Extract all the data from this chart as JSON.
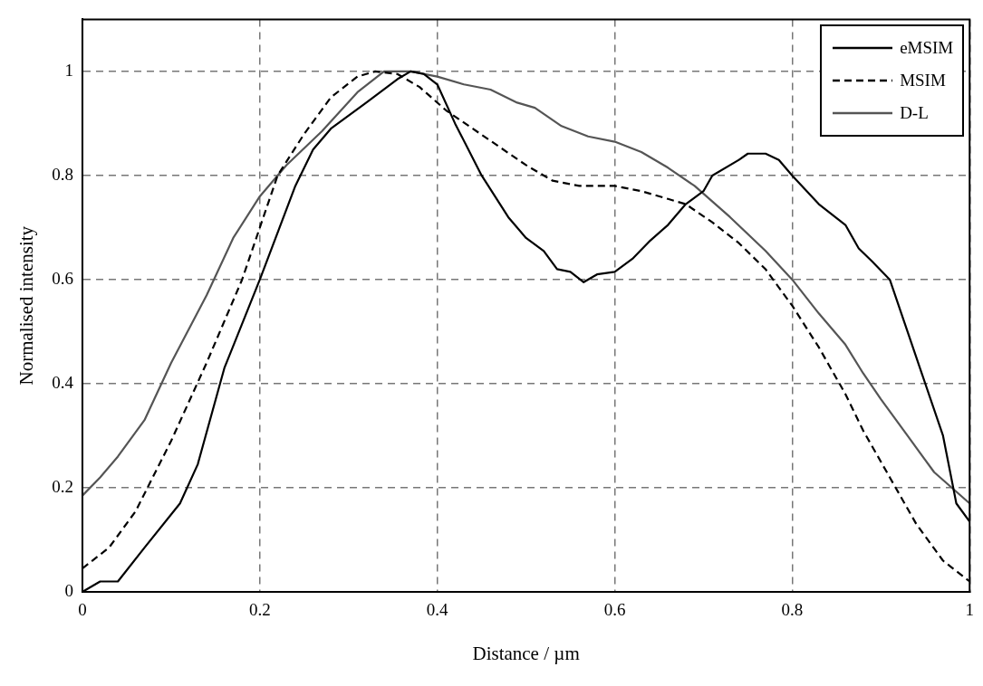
{
  "chart_data": {
    "type": "line",
    "xlabel": "Distance / µm",
    "ylabel": "Normalised intensity",
    "xlim": [
      0,
      1
    ],
    "xticks": [
      0,
      0.2,
      0.4,
      0.6,
      0.8,
      1
    ],
    "ylim": [
      0,
      1.1
    ],
    "yticks": [
      0,
      0.2,
      0.4,
      0.6,
      0.8,
      1
    ],
    "grid": true,
    "legend": "top right",
    "marker": "none",
    "series": [
      {
        "name": "eMSIM",
        "color": "#000000",
        "line_style": "solid",
        "x": [
          0,
          0.02,
          0.04,
          0.07,
          0.11,
          0.13,
          0.16,
          0.2,
          0.24,
          0.26,
          0.28,
          0.32,
          0.355,
          0.37,
          0.385,
          0.4,
          0.42,
          0.45,
          0.48,
          0.5,
          0.52,
          0.535,
          0.55,
          0.565,
          0.58,
          0.6,
          0.62,
          0.64,
          0.66,
          0.68,
          0.7,
          0.71,
          0.74,
          0.75,
          0.77,
          0.785,
          0.8,
          0.83,
          0.86,
          0.875,
          0.89,
          0.91,
          0.94,
          0.97,
          0.985,
          1
        ],
        "values": [
          0,
          0.02,
          0.02,
          0.085,
          0.17,
          0.245,
          0.43,
          0.6,
          0.78,
          0.85,
          0.89,
          0.94,
          0.985,
          1,
          0.995,
          0.975,
          0.9,
          0.8,
          0.72,
          0.68,
          0.655,
          0.62,
          0.615,
          0.595,
          0.61,
          0.615,
          0.64,
          0.675,
          0.705,
          0.745,
          0.77,
          0.8,
          0.83,
          0.842,
          0.842,
          0.83,
          0.8,
          0.745,
          0.705,
          0.66,
          0.635,
          0.6,
          0.45,
          0.3,
          0.17,
          0.135
        ]
      },
      {
        "name": "MSIM",
        "color": "#000000",
        "line_style": "dashed",
        "x": [
          0,
          0.03,
          0.06,
          0.1,
          0.14,
          0.18,
          0.2,
          0.22,
          0.25,
          0.28,
          0.31,
          0.33,
          0.355,
          0.38,
          0.41,
          0.44,
          0.47,
          0.5,
          0.53,
          0.56,
          0.6,
          0.63,
          0.66,
          0.68,
          0.71,
          0.74,
          0.77,
          0.8,
          0.83,
          0.86,
          0.88,
          0.91,
          0.94,
          0.97,
          1
        ],
        "values": [
          0.045,
          0.085,
          0.155,
          0.29,
          0.44,
          0.6,
          0.7,
          0.8,
          0.88,
          0.95,
          0.99,
          1,
          0.995,
          0.97,
          0.925,
          0.89,
          0.855,
          0.82,
          0.79,
          0.78,
          0.78,
          0.77,
          0.755,
          0.745,
          0.71,
          0.67,
          0.62,
          0.55,
          0.47,
          0.38,
          0.31,
          0.22,
          0.13,
          0.06,
          0.02
        ]
      },
      {
        "name": "D-L",
        "color": "#555555",
        "line_style": "solid",
        "x": [
          0,
          0.02,
          0.04,
          0.07,
          0.1,
          0.14,
          0.17,
          0.2,
          0.23,
          0.27,
          0.31,
          0.34,
          0.37,
          0.4,
          0.43,
          0.46,
          0.49,
          0.51,
          0.54,
          0.57,
          0.6,
          0.63,
          0.66,
          0.69,
          0.73,
          0.77,
          0.8,
          0.83,
          0.86,
          0.88,
          0.9,
          0.93,
          0.96,
          1
        ],
        "values": [
          0.185,
          0.22,
          0.26,
          0.33,
          0.44,
          0.57,
          0.68,
          0.76,
          0.82,
          0.885,
          0.96,
          1,
          1,
          0.99,
          0.975,
          0.965,
          0.94,
          0.93,
          0.895,
          0.875,
          0.865,
          0.845,
          0.815,
          0.78,
          0.72,
          0.655,
          0.6,
          0.535,
          0.475,
          0.42,
          0.37,
          0.3,
          0.23,
          0.17
        ]
      }
    ]
  }
}
